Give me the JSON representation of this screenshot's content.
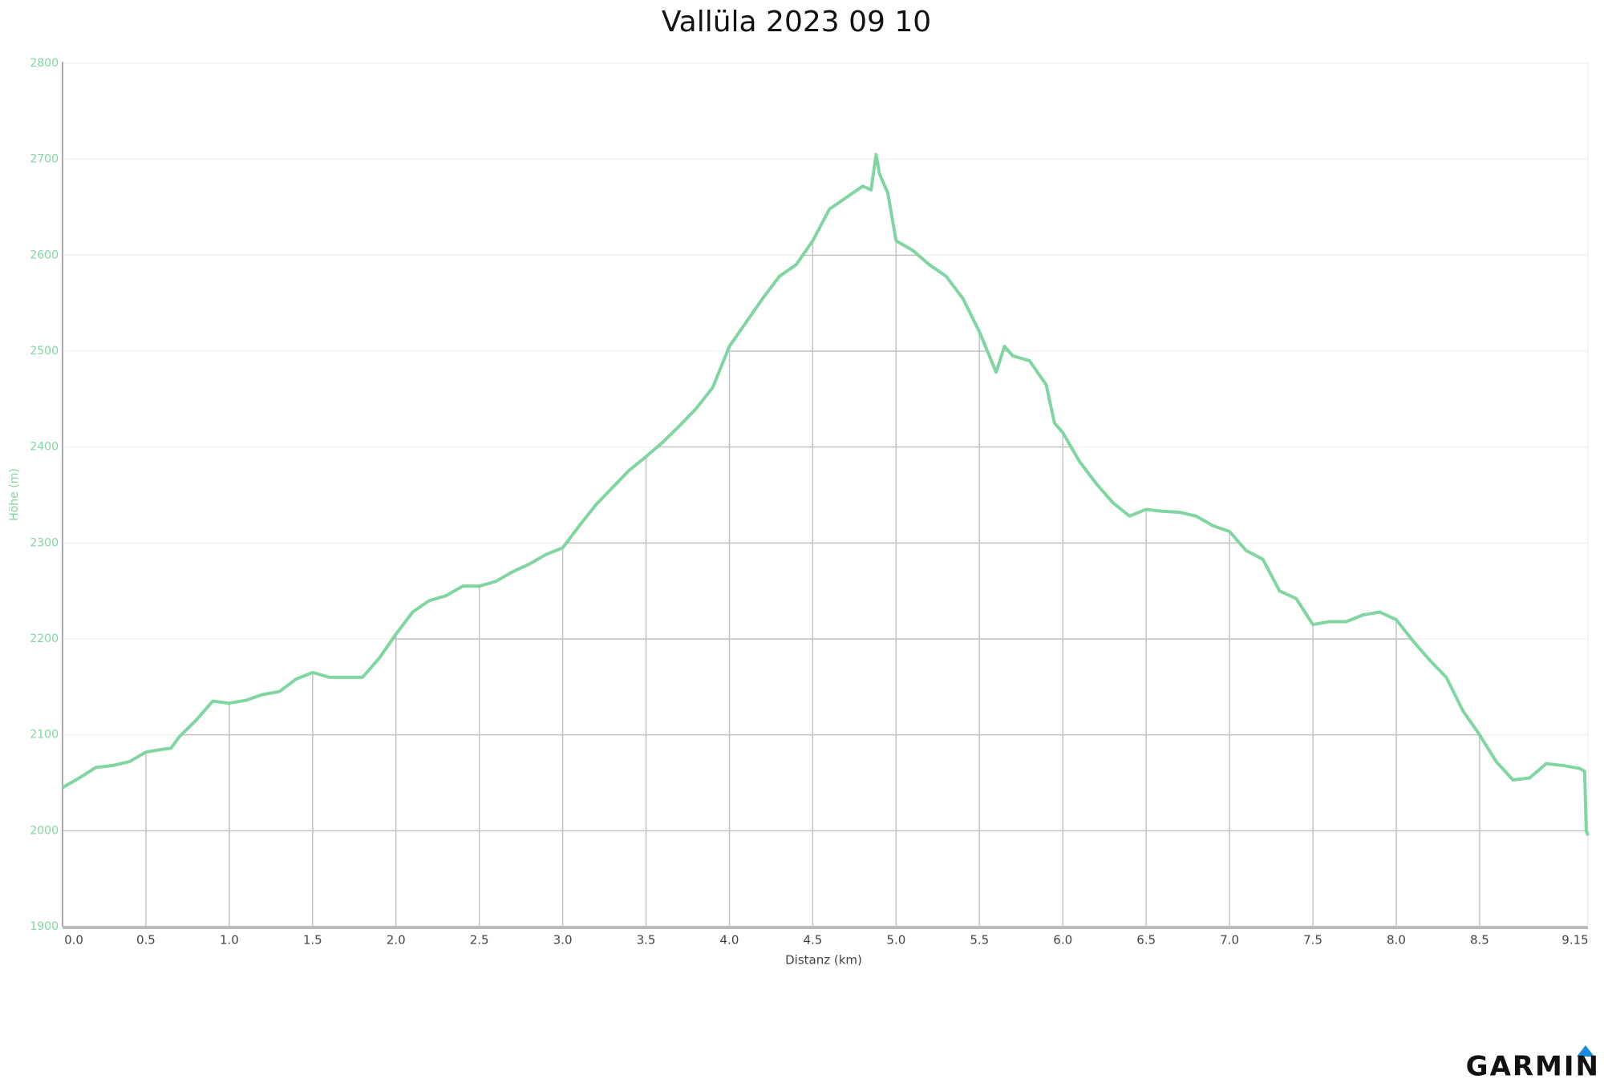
{
  "chart_data": {
    "type": "line",
    "title": "Vallüla 2023 09 10",
    "x_label": "Distanz (km)",
    "y_label": "Höhe (m)",
    "logo": "GARMIN",
    "color": "#80d6a0",
    "grid": true,
    "x": [
      0.0,
      0.1,
      0.2,
      0.3,
      0.4,
      0.5,
      0.6,
      0.65,
      0.7,
      0.8,
      0.9,
      1.0,
      1.1,
      1.2,
      1.3,
      1.4,
      1.5,
      1.6,
      1.7,
      1.8,
      1.9,
      2.0,
      2.1,
      2.2,
      2.3,
      2.4,
      2.5,
      2.6,
      2.7,
      2.8,
      2.9,
      3.0,
      3.1,
      3.2,
      3.3,
      3.4,
      3.5,
      3.6,
      3.7,
      3.8,
      3.9,
      4.0,
      4.1,
      4.2,
      4.3,
      4.4,
      4.5,
      4.6,
      4.7,
      4.8,
      4.85,
      4.88,
      4.9,
      4.95,
      5.0,
      5.1,
      5.2,
      5.3,
      5.4,
      5.5,
      5.6,
      5.65,
      5.7,
      5.8,
      5.9,
      5.95,
      6.0,
      6.1,
      6.2,
      6.3,
      6.4,
      6.5,
      6.6,
      6.7,
      6.8,
      6.9,
      7.0,
      7.1,
      7.2,
      7.3,
      7.4,
      7.5,
      7.6,
      7.7,
      7.8,
      7.9,
      8.0,
      8.1,
      8.2,
      8.3,
      8.4,
      8.5,
      8.6,
      8.7,
      8.8,
      8.9,
      9.0,
      9.1,
      9.13,
      9.14,
      9.15
    ],
    "values": [
      2045,
      2055,
      2066,
      2068,
      2072,
      2082,
      2085,
      2086,
      2098,
      2115,
      2135,
      2133,
      2136,
      2142,
      2145,
      2158,
      2165,
      2160,
      2160,
      2160,
      2180,
      2205,
      2228,
      2240,
      2245,
      2255,
      2255,
      2260,
      2270,
      2278,
      2288,
      2295,
      2318,
      2340,
      2358,
      2376,
      2390,
      2405,
      2422,
      2440,
      2462,
      2505,
      2530,
      2555,
      2578,
      2590,
      2615,
      2648,
      2660,
      2672,
      2668,
      2705,
      2685,
      2665,
      2615,
      2605,
      2590,
      2578,
      2555,
      2520,
      2478,
      2505,
      2495,
      2490,
      2465,
      2425,
      2415,
      2385,
      2362,
      2342,
      2328,
      2335,
      2333,
      2332,
      2328,
      2318,
      2312,
      2292,
      2283,
      2250,
      2242,
      2215,
      2218,
      2218,
      2225,
      2228,
      2220,
      2198,
      2178,
      2160,
      2125,
      2100,
      2072,
      2053,
      2055,
      2070,
      2068,
      2065,
      2062,
      2000,
      1995
    ],
    "xlim": [
      0,
      9.15
    ],
    "ylim": [
      1900,
      2800
    ],
    "xticks": [
      {
        "value": 0,
        "label": "0.0"
      },
      0.5,
      {
        "value": 1,
        "label": "1.0"
      },
      1.5,
      {
        "value": 2,
        "label": "2.0"
      },
      2.5,
      {
        "value": 3,
        "label": "3.0"
      },
      3.5,
      {
        "value": 4,
        "label": "4.0"
      },
      4.5,
      {
        "value": 5,
        "label": "5.0"
      },
      5.5,
      {
        "value": 6,
        "label": "6.0"
      },
      6.5,
      {
        "value": 7,
        "label": "7.0"
      },
      7.5,
      {
        "value": 8,
        "label": "8.0"
      },
      8.5,
      9.15
    ],
    "yticks": [
      1900,
      2000,
      2100,
      2200,
      2300,
      2400,
      2500,
      2600,
      2700,
      2800
    ]
  }
}
